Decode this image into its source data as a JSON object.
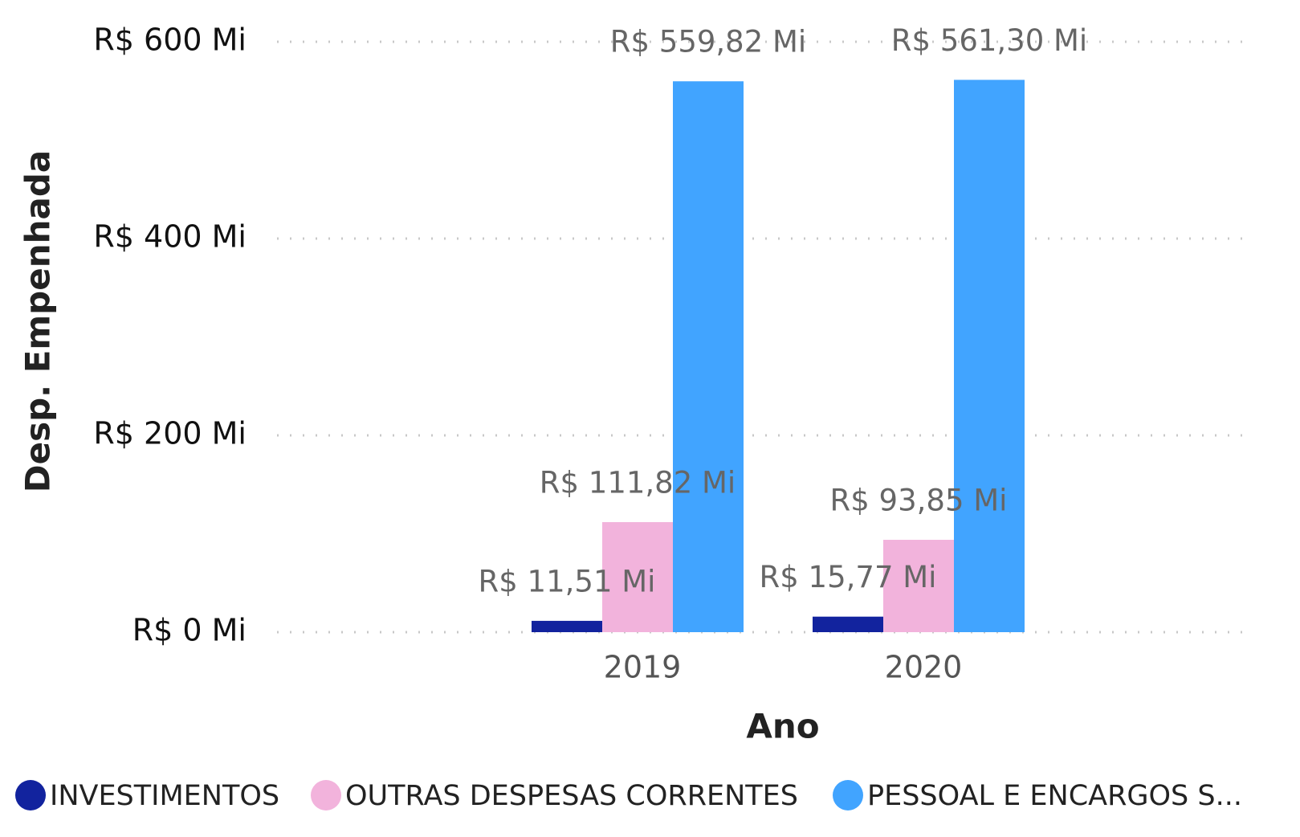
{
  "chart_data": {
    "type": "bar",
    "y_label": "Desp. Empenhada",
    "x_label": "Ano",
    "categories": [
      "2019",
      "2020"
    ],
    "series": [
      {
        "name": "INVESTIMENTOS",
        "color": "#12239e",
        "values": [
          11.51,
          15.77
        ],
        "value_labels": [
          "R$ 11,51 Mi",
          "R$ 15,77 Mi"
        ]
      },
      {
        "name": "OUTRAS DESPESAS CORRENTES",
        "color": "#f2b3dc",
        "values": [
          111.82,
          93.85
        ],
        "value_labels": [
          "R$ 111,82 Mi",
          "R$ 93,85 Mi"
        ]
      },
      {
        "name": "PESSOAL E ENCARGOS S...",
        "color": "#41a4ff",
        "values": [
          559.82,
          561.3
        ],
        "value_labels": [
          "R$ 559,82 Mi",
          "R$ 561,30 Mi"
        ]
      }
    ],
    "ylim": [
      0,
      600
    ],
    "yticks": [
      {
        "value": 0,
        "label": "R$ 0 Mi"
      },
      {
        "value": 200,
        "label": "R$ 200 Mi"
      },
      {
        "value": 400,
        "label": "R$ 400 Mi"
      },
      {
        "value": 600,
        "label": "R$ 600 Mi"
      }
    ],
    "grid": true
  }
}
